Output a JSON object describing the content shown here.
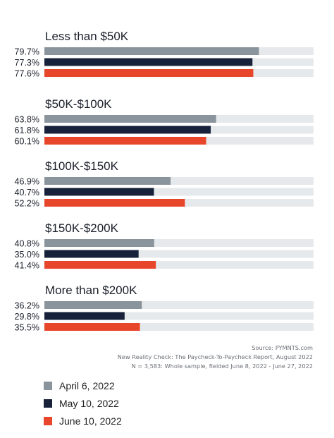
{
  "chart_data": {
    "type": "bar",
    "orientation": "horizontal",
    "xlim": [
      0,
      100
    ],
    "groups": [
      {
        "title": "Less than $50K",
        "labels": [
          "79.7%",
          "77.3%",
          "77.6%"
        ],
        "values": [
          79.7,
          77.3,
          77.6
        ]
      },
      {
        "title": "$50K-$100K",
        "labels": [
          "63.8%",
          "61.8%",
          "60.1%"
        ],
        "values": [
          63.8,
          61.8,
          60.1
        ]
      },
      {
        "title": "$100K-$150K",
        "labels": [
          "46.9%",
          "40.7%",
          "52.2%"
        ],
        "values": [
          46.9,
          40.7,
          52.2
        ]
      },
      {
        "title": "$150K-$200K",
        "labels": [
          "40.8%",
          "35.0%",
          "41.4%"
        ],
        "values": [
          40.8,
          35.0,
          41.4
        ]
      },
      {
        "title": "More than $200K",
        "labels": [
          "36.2%",
          "29.8%",
          "35.5%"
        ],
        "values": [
          36.2,
          29.8,
          35.5
        ]
      }
    ],
    "series": [
      {
        "name": "April 6, 2022",
        "color": "#8a949c"
      },
      {
        "name": "May 10, 2022",
        "color": "#17213a"
      },
      {
        "name": "June 10, 2022",
        "color": "#e8462b"
      }
    ],
    "track_color": "#e6e9eb",
    "source_lines": [
      "Source: PYMNTS.com",
      "New Reality Check: The Paycheck-To-Paycheck Report, August 2022",
      "N = 3,583: Whole sample, fielded June 8, 2022 - June 27, 2022"
    ],
    "grid": false,
    "legend_position": "bottom-left"
  }
}
